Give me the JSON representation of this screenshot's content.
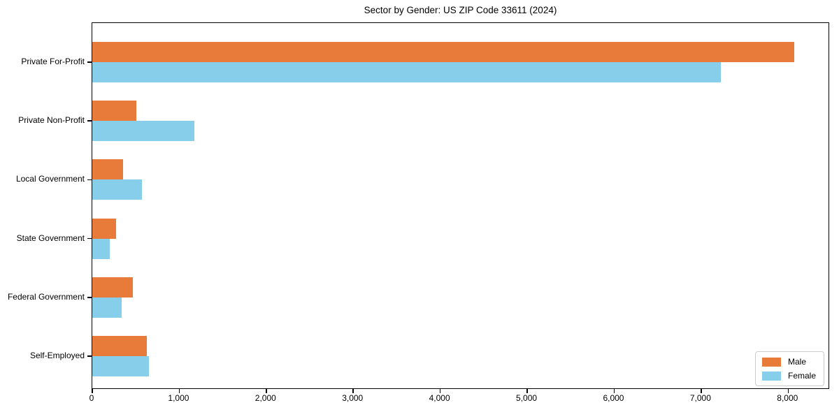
{
  "title": "Sector by Gender: US ZIP Code 33611 (2024)",
  "legend": {
    "items": [
      {
        "label": "Male",
        "color": "#e87b3a"
      },
      {
        "label": "Female",
        "color": "#87ceeb"
      }
    ]
  },
  "chart_data": {
    "type": "bar",
    "orientation": "horizontal",
    "title": "Sector by Gender: US ZIP Code 33611 (2024)",
    "categories": [
      "Private For-Profit",
      "Private Non-Profit",
      "Local Government",
      "State Government",
      "Federal Government",
      "Self-Employed"
    ],
    "series": [
      {
        "name": "Male",
        "color": "#e87b3a",
        "values": [
          8070,
          510,
          350,
          270,
          470,
          630
        ]
      },
      {
        "name": "Female",
        "color": "#87ceeb",
        "values": [
          7230,
          1170,
          570,
          200,
          340,
          650
        ]
      }
    ],
    "xlabel": "",
    "ylabel": "",
    "xlim": [
      0,
      8480
    ],
    "xticks": [
      0,
      1000,
      2000,
      3000,
      4000,
      5000,
      6000,
      7000,
      8000
    ],
    "xtick_labels": [
      "0",
      "1,000",
      "2,000",
      "3,000",
      "4,000",
      "5,000",
      "6,000",
      "7,000",
      "8,000"
    ],
    "grid": false,
    "legend_position": "lower right"
  }
}
